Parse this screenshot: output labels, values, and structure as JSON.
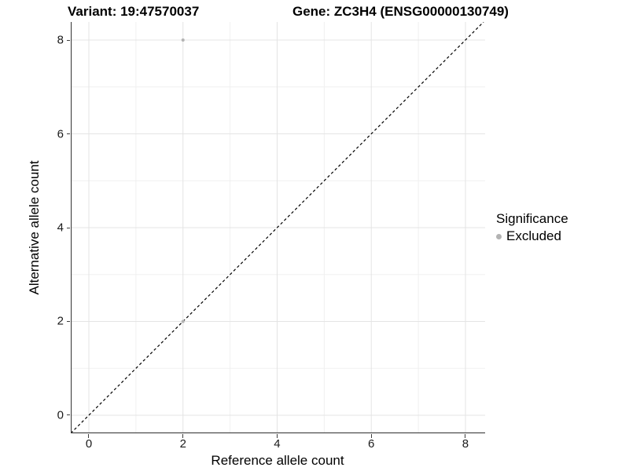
{
  "figure": {
    "title_left": "Variant: 19:47570037",
    "title_right": "Gene: ZC3H4 (ENSG00000130749)"
  },
  "legend": {
    "title": "Significance",
    "entries": [
      {
        "label": "Excluded",
        "color": "#b3b3b3"
      }
    ]
  },
  "chart_data": {
    "type": "scatter",
    "title": "Variant: 19:47570037    Gene: ZC3H4 (ENSG00000130749)",
    "xlabel": "Reference allele count",
    "ylabel": "Alternative allele count",
    "xlim": [
      -0.384,
      8.418
    ],
    "ylim": [
      -0.385,
      8.385
    ],
    "x_ticks": [
      0,
      2,
      4,
      6,
      8
    ],
    "y_ticks": [
      0,
      2,
      4,
      6,
      8
    ],
    "x_minor_gridlines": [
      1,
      3,
      5,
      7
    ],
    "y_minor_gridlines": [
      1,
      3,
      5,
      7
    ],
    "grid": "on",
    "legend_position": "right",
    "identity_line": {
      "style": "dashed",
      "slope": 1,
      "intercept": 0,
      "color": "#000000"
    },
    "series": [
      {
        "name": "Excluded",
        "color": "#b3b3b3",
        "marker": "circle",
        "marker_radius_px": 2,
        "points": [
          [
            2,
            8
          ],
          [
            2,
            2
          ]
        ]
      }
    ],
    "colors": {
      "grid_major": "#e4e4e4",
      "grid_minor": "#f0f0f0",
      "axis_line": "#3d3d3d",
      "tick_label": "#1a1a1a",
      "background": "#ffffff"
    }
  }
}
